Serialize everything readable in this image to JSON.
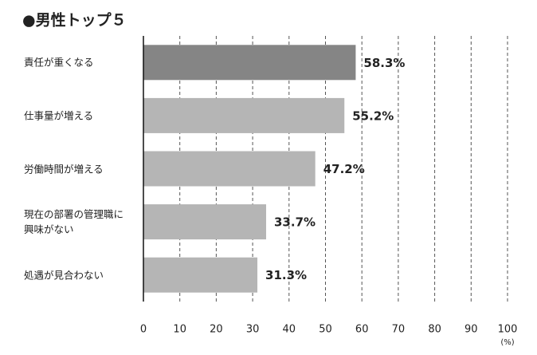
{
  "chart_data": {
    "type": "bar",
    "orientation": "horizontal",
    "title": "●男性トップ５",
    "categories": [
      "責任が重くなる",
      "仕事量が増える",
      "労働時間が増える",
      "現在の部署の管理職に\n興味がない",
      "処遇が見合わない"
    ],
    "values": [
      58.3,
      55.2,
      47.2,
      33.7,
      31.3
    ],
    "value_labels": [
      "58.3%",
      "55.2%",
      "47.2%",
      "33.7%",
      "31.3%"
    ],
    "colors": [
      "#858585",
      "#b5b5b5",
      "#b5b5b5",
      "#b5b5b5",
      "#b5b5b5"
    ],
    "xlim": [
      0,
      100
    ],
    "xticks": [
      0,
      10,
      20,
      30,
      40,
      50,
      60,
      70,
      80,
      90,
      100
    ],
    "unit_label": "(%)",
    "grid": true
  }
}
